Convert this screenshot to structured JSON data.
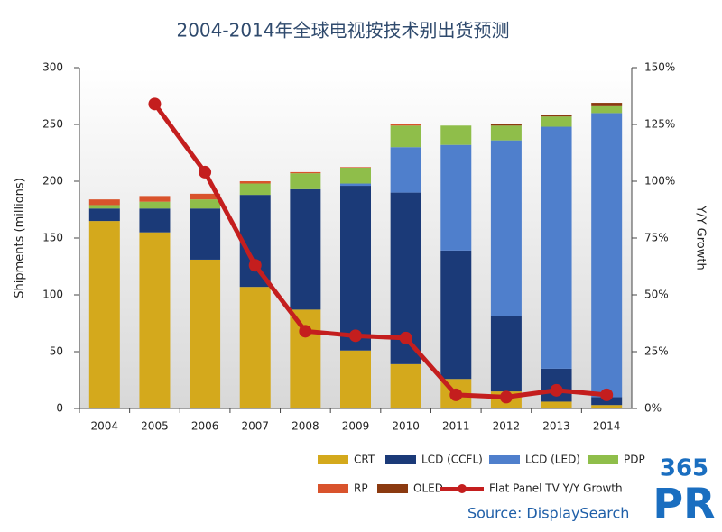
{
  "chart_data": {
    "type": "bar",
    "stacked": true,
    "title": "2004-2014年全球电视按技术别出货预测",
    "ylabel": "Shipments (millions)",
    "y2label": "Y/Y Growth",
    "source": "Source: DisplaySearch",
    "logo_top": "365",
    "logo_bottom": "PR",
    "categories": [
      "2004",
      "2005",
      "2006",
      "2007",
      "2008",
      "2009",
      "2010",
      "2011",
      "2012",
      "2013",
      "2014"
    ],
    "ylim": [
      0,
      300
    ],
    "yticks": [
      0,
      50,
      100,
      150,
      200,
      250,
      300
    ],
    "y2lim": [
      0,
      150
    ],
    "y2ticks": [
      {
        "value": 0,
        "label": "0%"
      },
      {
        "value": 25,
        "label": "25%"
      },
      {
        "value": 50,
        "label": "50%"
      },
      {
        "value": 75,
        "label": "75%"
      },
      {
        "value": 100,
        "label": "100%"
      },
      {
        "value": 125,
        "label": "125%"
      },
      {
        "value": 150,
        "label": "150%"
      }
    ],
    "series": [
      {
        "name": "CRT",
        "color": "#d4a91c",
        "values": [
          165,
          155,
          131,
          107,
          87,
          51,
          39,
          26,
          15,
          6,
          3
        ]
      },
      {
        "name": "LCD (CCFL)",
        "color": "#1b3a78",
        "values": [
          11,
          21,
          45,
          81,
          106,
          145,
          151,
          113,
          66,
          29,
          7
        ]
      },
      {
        "name": "LCD (LED)",
        "color": "#4f7fcc",
        "values": [
          0,
          0,
          0,
          0,
          0,
          2,
          40,
          93,
          155,
          213,
          250
        ]
      },
      {
        "name": "PDP",
        "color": "#8fbe4a",
        "values": [
          3,
          6,
          8,
          10,
          14,
          14,
          19,
          17,
          13,
          9,
          6
        ]
      },
      {
        "name": "RP",
        "color": "#d9532c",
        "values": [
          5,
          5,
          5,
          2,
          1,
          0.5,
          1,
          0,
          0,
          0,
          0
        ]
      },
      {
        "name": "OLED",
        "color": "#8b3a10",
        "values": [
          0,
          0,
          0,
          0,
          0,
          0,
          0,
          0,
          1,
          1,
          3
        ]
      },
      {
        "name": "Flat Panel TV Y/Y Growth",
        "type": "line",
        "axis": "y2",
        "color": "#c41e1e",
        "values": [
          null,
          134,
          104,
          63,
          34,
          32,
          31,
          6,
          5,
          8,
          6
        ]
      }
    ]
  }
}
